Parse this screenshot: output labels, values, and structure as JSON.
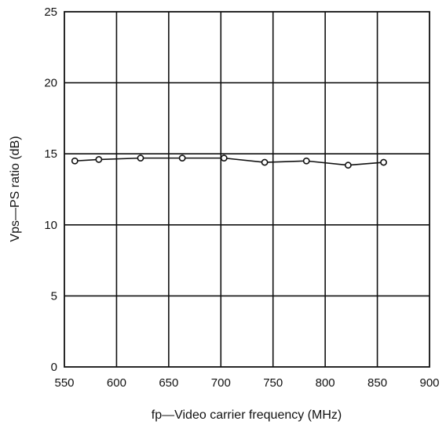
{
  "chart_data": {
    "type": "line",
    "title": "",
    "xlabel": "fp—Video carrier frequency (MHz)",
    "ylabel": "Vps—PS ratio (dB)",
    "xlim": [
      550,
      900
    ],
    "ylim": [
      0,
      25
    ],
    "grid": true,
    "x_ticks": [
      "550",
      "600",
      "650",
      "700",
      "750",
      "800",
      "850",
      "900"
    ],
    "y_ticks": [
      "0",
      "5",
      "10",
      "15",
      "20",
      "25"
    ],
    "series": [
      {
        "x": [
          560,
          583,
          623,
          663,
          703,
          742,
          782,
          822,
          856
        ],
        "y": [
          14.5,
          14.6,
          14.7,
          14.7,
          14.7,
          14.4,
          14.5,
          14.2,
          14.4
        ]
      }
    ]
  }
}
